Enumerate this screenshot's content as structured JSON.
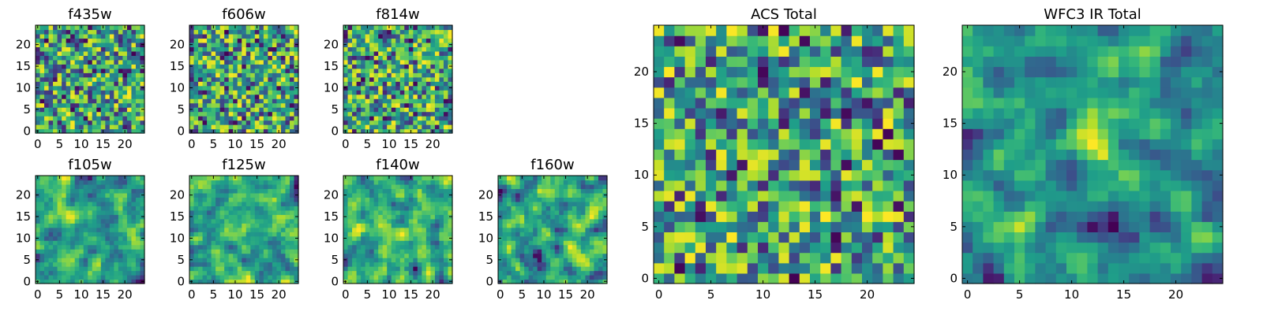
{
  "chart_data": [
    {
      "type": "heatmap",
      "title": "f435w",
      "colormap": "viridis",
      "pixels": 25,
      "xticks": [
        0,
        5,
        10,
        15,
        20
      ],
      "yticks": [
        0,
        5,
        10,
        15,
        20
      ],
      "xlim": [
        0,
        24
      ],
      "ylim": [
        0,
        24
      ],
      "pattern": "pixel-noise",
      "seed": 11
    },
    {
      "type": "heatmap",
      "title": "f606w",
      "colormap": "viridis",
      "pixels": 25,
      "xticks": [
        0,
        5,
        10,
        15,
        20
      ],
      "yticks": [
        0,
        5,
        10,
        15,
        20
      ],
      "xlim": [
        0,
        24
      ],
      "ylim": [
        0,
        24
      ],
      "pattern": "pixel-noise",
      "seed": 23
    },
    {
      "type": "heatmap",
      "title": "f814w",
      "colormap": "viridis",
      "pixels": 25,
      "xticks": [
        0,
        5,
        10,
        15,
        20
      ],
      "yticks": [
        0,
        5,
        10,
        15,
        20
      ],
      "xlim": [
        0,
        24
      ],
      "ylim": [
        0,
        24
      ],
      "pattern": "pixel-noise",
      "seed": 37
    },
    {
      "type": "heatmap",
      "title": "f105w",
      "colormap": "viridis",
      "pixels": 25,
      "xticks": [
        0,
        5,
        10,
        15,
        20
      ],
      "yticks": [
        0,
        5,
        10,
        15,
        20
      ],
      "xlim": [
        0,
        24
      ],
      "ylim": [
        0,
        24
      ],
      "pattern": "correlated-noise",
      "seed": 41
    },
    {
      "type": "heatmap",
      "title": "f125w",
      "colormap": "viridis",
      "pixels": 25,
      "xticks": [
        0,
        5,
        10,
        15,
        20
      ],
      "yticks": [
        0,
        5,
        10,
        15,
        20
      ],
      "xlim": [
        0,
        24
      ],
      "ylim": [
        0,
        24
      ],
      "pattern": "correlated-noise",
      "seed": 53
    },
    {
      "type": "heatmap",
      "title": "f140w",
      "colormap": "viridis",
      "pixels": 25,
      "xticks": [
        0,
        5,
        10,
        15,
        20
      ],
      "yticks": [
        0,
        5,
        10,
        15,
        20
      ],
      "xlim": [
        0,
        24
      ],
      "ylim": [
        0,
        24
      ],
      "pattern": "correlated-noise",
      "seed": 67
    },
    {
      "type": "heatmap",
      "title": "f160w",
      "colormap": "viridis",
      "pixels": 25,
      "xticks": [
        0,
        5,
        10,
        15,
        20
      ],
      "yticks": [
        0,
        5,
        10,
        15,
        20
      ],
      "xlim": [
        0,
        24
      ],
      "ylim": [
        0,
        24
      ],
      "pattern": "correlated-noise",
      "seed": 79
    },
    {
      "type": "heatmap",
      "title": "ACS Total",
      "colormap": "viridis",
      "pixels": 25,
      "xticks": [
        0,
        5,
        10,
        15,
        20
      ],
      "yticks": [
        0,
        5,
        10,
        15,
        20
      ],
      "xlim": [
        0,
        24
      ],
      "ylim": [
        0,
        24
      ],
      "pattern": "pixel-noise",
      "seed": 97
    },
    {
      "type": "heatmap",
      "title": "WFC3 IR Total",
      "colormap": "viridis",
      "pixels": 25,
      "xticks": [
        0,
        5,
        10,
        15,
        20
      ],
      "yticks": [
        0,
        5,
        10,
        15,
        20
      ],
      "xlim": [
        0,
        24
      ],
      "ylim": [
        0,
        24
      ],
      "pattern": "correlated-noise-with-central-source",
      "source_center": [
        12,
        13
      ],
      "seed": 131
    }
  ]
}
